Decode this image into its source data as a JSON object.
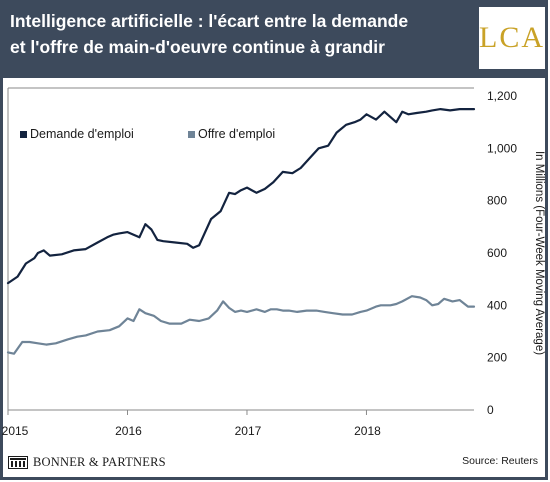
{
  "header": {
    "title_line1": "Intelligence artificielle : l'écart entre la demande",
    "title_line2": "et l'offre de main-d'oeuvre continue à grandir",
    "logo_text": "LCA"
  },
  "footer": {
    "publisher": "BONNER & PARTNERS",
    "source": "Source: Reuters"
  },
  "colors": {
    "header_bg": "#3d4a5c",
    "demand_series": "#13233f",
    "supply_series": "#6f8497",
    "logo_gold": "#c9a227"
  },
  "chart_data": {
    "type": "line",
    "ylabel": "In Millions (Four-Week Moving Average)",
    "ylim": [
      0,
      1200
    ],
    "yticks": [
      0,
      200,
      400,
      600,
      800,
      1000,
      1200
    ],
    "ytick_labels": [
      "0",
      "200",
      "400",
      "600",
      "800",
      "1,000",
      "1,200"
    ],
    "xlim": [
      2015.0,
      2018.9
    ],
    "xticks": [
      2015,
      2016,
      2017,
      2018
    ],
    "xtick_labels": [
      "2015",
      "2016",
      "2017",
      "2018"
    ],
    "grid": false,
    "legend_position": "top-left",
    "series": [
      {
        "name": "Demande d'emploi",
        "color": "#13233f",
        "x": [
          2015.0,
          2015.08,
          2015.15,
          2015.22,
          2015.25,
          2015.3,
          2015.35,
          2015.45,
          2015.55,
          2015.65,
          2015.75,
          2015.83,
          2015.88,
          2015.93,
          2016.0,
          2016.1,
          2016.15,
          2016.2,
          2016.25,
          2016.3,
          2016.4,
          2016.5,
          2016.55,
          2016.6,
          2016.7,
          2016.78,
          2016.85,
          2016.9,
          2016.95,
          2017.0,
          2017.08,
          2017.15,
          2017.22,
          2017.3,
          2017.38,
          2017.45,
          2017.52,
          2017.6,
          2017.68,
          2017.75,
          2017.83,
          2017.9,
          2017.95,
          2018.0,
          2018.08,
          2018.15,
          2018.25,
          2018.3,
          2018.35,
          2018.42,
          2018.5,
          2018.55,
          2018.62,
          2018.7,
          2018.78,
          2018.85,
          2018.9
        ],
        "values": [
          485,
          510,
          560,
          580,
          600,
          610,
          590,
          595,
          610,
          615,
          640,
          660,
          670,
          675,
          680,
          660,
          710,
          690,
          650,
          645,
          640,
          635,
          620,
          630,
          730,
          760,
          830,
          825,
          840,
          850,
          830,
          845,
          870,
          910,
          905,
          925,
          960,
          1000,
          1010,
          1060,
          1090,
          1100,
          1110,
          1130,
          1110,
          1140,
          1100,
          1140,
          1130,
          1135,
          1140,
          1145,
          1150,
          1145,
          1150,
          1150,
          1150
        ]
      },
      {
        "name": "Offre d'emploi",
        "color": "#6f8497",
        "x": [
          2015.0,
          2015.05,
          2015.12,
          2015.18,
          2015.25,
          2015.32,
          2015.4,
          2015.5,
          2015.58,
          2015.65,
          2015.75,
          2015.85,
          2015.93,
          2016.0,
          2016.05,
          2016.1,
          2016.15,
          2016.22,
          2016.28,
          2016.35,
          2016.45,
          2016.52,
          2016.6,
          2016.68,
          2016.75,
          2016.8,
          2016.85,
          2016.9,
          2016.95,
          2017.0,
          2017.08,
          2017.15,
          2017.2,
          2017.25,
          2017.3,
          2017.35,
          2017.42,
          2017.5,
          2017.58,
          2017.65,
          2017.72,
          2017.8,
          2017.88,
          2017.95,
          2018.0,
          2018.08,
          2018.12,
          2018.2,
          2018.25,
          2018.3,
          2018.38,
          2018.45,
          2018.5,
          2018.55,
          2018.6,
          2018.65,
          2018.72,
          2018.78,
          2018.85,
          2018.9
        ],
        "values": [
          220,
          215,
          260,
          260,
          255,
          250,
          255,
          270,
          280,
          285,
          300,
          305,
          320,
          350,
          340,
          385,
          370,
          360,
          340,
          330,
          330,
          345,
          340,
          350,
          380,
          415,
          390,
          375,
          380,
          375,
          385,
          375,
          385,
          385,
          380,
          380,
          375,
          380,
          380,
          375,
          370,
          365,
          365,
          375,
          380,
          395,
          400,
          400,
          405,
          415,
          435,
          430,
          420,
          400,
          405,
          425,
          415,
          420,
          395,
          395
        ]
      }
    ]
  }
}
